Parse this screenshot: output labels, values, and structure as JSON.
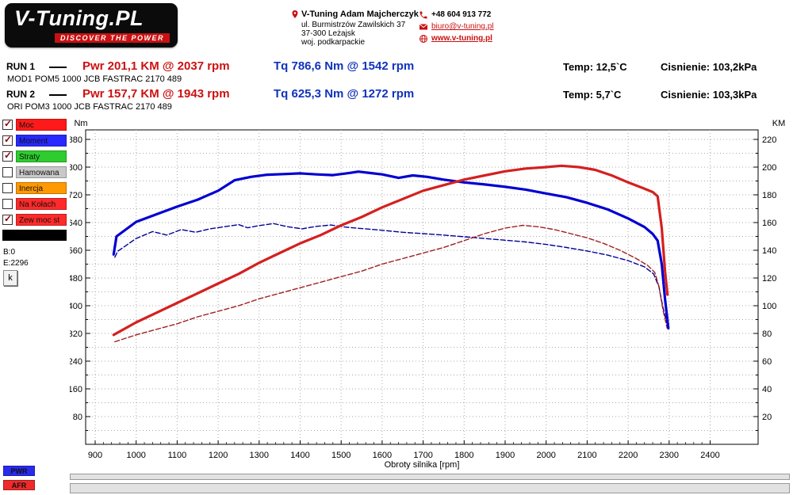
{
  "logo": {
    "title": "V-Tuning.PL",
    "tagline": "DISCOVER THE POWER"
  },
  "contact": {
    "name": "V-Tuning Adam Majcherczyk",
    "address1": "ul. Burmistrzów Zawilskich 37",
    "address2": "37-300 Leżajsk",
    "address3": "woj. podkarpackie",
    "phone": "+48 604 913 772",
    "email": "biuro@v-tuning.pl",
    "website": "www.v-tuning.pl"
  },
  "runs": [
    {
      "label": "RUN 1",
      "pwr": "Pwr 201,1 KM @ 2037 rpm",
      "tq": "Tq 786,6 Nm @ 1542 rpm",
      "temp": "Temp: 12,5`C",
      "pressure": "Cisnienie: 103,2kPa",
      "desc": "MOD1 POM5 1000 JCB FASTRAC 2170 489"
    },
    {
      "label": "RUN 2",
      "pwr": "Pwr 157,7 KM @ 1943 rpm",
      "tq": "Tq 625,3 Nm @ 1272 rpm",
      "temp": "Temp: 5,7`C",
      "pressure": "Cisnienie: 103,3kPa",
      "desc": "ORI POM3 1000 JCB FASTRAC 2170 489"
    }
  ],
  "colors": {
    "power_red": "#cc1111",
    "torque_blue": "#1133bb"
  },
  "legend": {
    "items": [
      {
        "label": "Moc",
        "color": "#ff1a1a",
        "checked": true,
        "checkbox": true
      },
      {
        "label": "Moment",
        "color": "#2828ff",
        "checked": true,
        "checkbox": true
      },
      {
        "label": "Straty",
        "color": "#2ecc2e",
        "checked": true,
        "checkbox": true
      },
      {
        "label": "Hamowana",
        "color": "#c8c8c8",
        "checked": false,
        "checkbox": true
      },
      {
        "label": "Inercja",
        "color": "#ff9900",
        "checked": false,
        "checkbox": true
      },
      {
        "label": "Na Kołach",
        "color": "#ff2a2a",
        "checked": false,
        "checkbox": true
      },
      {
        "label": "Zew moc st",
        "color": "#ff2a2a",
        "checked": true,
        "checkbox": true
      },
      {
        "label": "",
        "color": "#000000",
        "checked": false,
        "checkbox": false
      }
    ],
    "b_value": "B:0",
    "e_value": "E:2296",
    "k_button": "k"
  },
  "bottom_tags": [
    {
      "label": "PWR",
      "color": "#2a2aee"
    },
    {
      "label": "AFR",
      "color": "#ee2a2a"
    }
  ],
  "chart_data": {
    "type": "line",
    "title": "",
    "xlabel": "Obroty silnika [rpm]",
    "ylabel_left": "Nm",
    "ylabel_right": "KM",
    "x_ticks": [
      900,
      1000,
      1100,
      1200,
      1300,
      1400,
      1500,
      1600,
      1700,
      1800,
      1900,
      2000,
      2100,
      2200,
      2300,
      2400
    ],
    "y_left_ticks": [
      80,
      160,
      240,
      320,
      400,
      480,
      560,
      640,
      720,
      800,
      880
    ],
    "y_right_ticks": [
      20,
      40,
      60,
      80,
      100,
      120,
      140,
      160,
      180,
      200,
      220
    ],
    "x_range": [
      900,
      2400
    ],
    "y_left_range": [
      0,
      880
    ],
    "y_right_range": [
      0,
      220
    ],
    "grid": true,
    "legend_position": "left-panel",
    "series": [
      {
        "name": "Moment RUN 2 ORI (Nm)",
        "axis": "left",
        "color": "#000099",
        "style": "dashed",
        "width": 1.4,
        "points": [
          [
            948,
            540
          ],
          [
            955,
            557
          ],
          [
            1000,
            594
          ],
          [
            1040,
            614
          ],
          [
            1075,
            604
          ],
          [
            1110,
            620
          ],
          [
            1145,
            612
          ],
          [
            1180,
            622
          ],
          [
            1215,
            628
          ],
          [
            1250,
            634
          ],
          [
            1272,
            625
          ],
          [
            1300,
            631
          ],
          [
            1335,
            637
          ],
          [
            1370,
            628
          ],
          [
            1405,
            622
          ],
          [
            1440,
            629
          ],
          [
            1475,
            633
          ],
          [
            1510,
            627
          ],
          [
            1545,
            623
          ],
          [
            1580,
            620
          ],
          [
            1615,
            616
          ],
          [
            1650,
            612
          ],
          [
            1700,
            608
          ],
          [
            1750,
            604
          ],
          [
            1800,
            599
          ],
          [
            1850,
            594
          ],
          [
            1900,
            589
          ],
          [
            1950,
            584
          ],
          [
            2000,
            577
          ],
          [
            2050,
            568
          ],
          [
            2100,
            558
          ],
          [
            2150,
            546
          ],
          [
            2200,
            530
          ],
          [
            2240,
            512
          ],
          [
            2262,
            492
          ],
          [
            2275,
            455
          ],
          [
            2285,
            395
          ],
          [
            2295,
            348
          ]
        ]
      },
      {
        "name": "Moc RUN 2 ORI (KM)",
        "axis": "right",
        "color": "#a02020",
        "style": "dashed",
        "width": 1.4,
        "points": [
          [
            948,
            74
          ],
          [
            1000,
            79
          ],
          [
            1050,
            83
          ],
          [
            1100,
            87
          ],
          [
            1150,
            92
          ],
          [
            1200,
            96
          ],
          [
            1250,
            100
          ],
          [
            1300,
            105
          ],
          [
            1350,
            109
          ],
          [
            1400,
            113
          ],
          [
            1450,
            117
          ],
          [
            1500,
            121
          ],
          [
            1550,
            125
          ],
          [
            1600,
            130
          ],
          [
            1650,
            134
          ],
          [
            1700,
            138
          ],
          [
            1750,
            142
          ],
          [
            1800,
            147
          ],
          [
            1850,
            152
          ],
          [
            1900,
            156
          ],
          [
            1943,
            158
          ],
          [
            1980,
            157
          ],
          [
            2020,
            155
          ],
          [
            2060,
            152
          ],
          [
            2100,
            149
          ],
          [
            2140,
            145
          ],
          [
            2180,
            140
          ],
          [
            2220,
            134
          ],
          [
            2248,
            129
          ],
          [
            2265,
            124
          ],
          [
            2275,
            114
          ],
          [
            2285,
            97
          ],
          [
            2295,
            84
          ]
        ]
      },
      {
        "name": "Moment RUN 1 MOD (Nm)",
        "axis": "left",
        "color": "#0000d0",
        "style": "solid",
        "width": 3.2,
        "points": [
          [
            945,
            548
          ],
          [
            952,
            600
          ],
          [
            1000,
            642
          ],
          [
            1050,
            664
          ],
          [
            1100,
            686
          ],
          [
            1150,
            706
          ],
          [
            1200,
            732
          ],
          [
            1240,
            762
          ],
          [
            1280,
            772
          ],
          [
            1320,
            778
          ],
          [
            1360,
            780
          ],
          [
            1400,
            782
          ],
          [
            1440,
            779
          ],
          [
            1480,
            777
          ],
          [
            1520,
            783
          ],
          [
            1542,
            787
          ],
          [
            1570,
            783
          ],
          [
            1600,
            779
          ],
          [
            1640,
            769
          ],
          [
            1675,
            776
          ],
          [
            1710,
            772
          ],
          [
            1750,
            764
          ],
          [
            1800,
            756
          ],
          [
            1850,
            750
          ],
          [
            1900,
            743
          ],
          [
            1950,
            735
          ],
          [
            2000,
            724
          ],
          [
            2050,
            713
          ],
          [
            2100,
            697
          ],
          [
            2150,
            678
          ],
          [
            2200,
            652
          ],
          [
            2240,
            627
          ],
          [
            2260,
            607
          ],
          [
            2272,
            588
          ],
          [
            2282,
            520
          ],
          [
            2290,
            420
          ],
          [
            2298,
            335
          ]
        ]
      },
      {
        "name": "Moc RUN 1 MOD (KM)",
        "axis": "right",
        "color": "#d42020",
        "style": "solid",
        "width": 3.2,
        "points": [
          [
            945,
            79
          ],
          [
            1000,
            88
          ],
          [
            1050,
            95
          ],
          [
            1100,
            102
          ],
          [
            1150,
            109
          ],
          [
            1200,
            116
          ],
          [
            1250,
            123
          ],
          [
            1300,
            131
          ],
          [
            1350,
            138
          ],
          [
            1400,
            145
          ],
          [
            1450,
            151
          ],
          [
            1500,
            158
          ],
          [
            1550,
            164
          ],
          [
            1600,
            171
          ],
          [
            1650,
            177
          ],
          [
            1700,
            183
          ],
          [
            1750,
            187
          ],
          [
            1800,
            191
          ],
          [
            1850,
            194
          ],
          [
            1900,
            197
          ],
          [
            1950,
            199
          ],
          [
            2000,
            200
          ],
          [
            2037,
            201
          ],
          [
            2080,
            200
          ],
          [
            2120,
            198
          ],
          [
            2160,
            194
          ],
          [
            2200,
            189
          ],
          [
            2235,
            185
          ],
          [
            2260,
            182
          ],
          [
            2272,
            179
          ],
          [
            2282,
            156
          ],
          [
            2290,
            125
          ],
          [
            2296,
            108
          ]
        ]
      }
    ]
  }
}
